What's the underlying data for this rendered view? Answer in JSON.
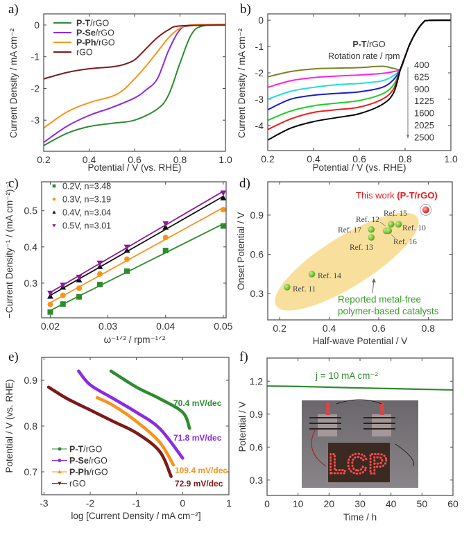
{
  "chart_data": [
    {
      "label": "a)",
      "type": "line",
      "xlabel": "Potential / V (vs. RHE)",
      "ylabel": "Current Density / mA cm⁻²",
      "xlim": [
        0.2,
        1.0
      ],
      "ylim": [
        -3.98,
        0.35
      ],
      "xticks": [
        "0.2",
        "0.4",
        "0.6",
        "0.8",
        "1.0"
      ],
      "yticks": [
        "0",
        "-1",
        "-2",
        "-3"
      ],
      "legend": "top-left",
      "series": [
        {
          "name": "P-T/rGO",
          "color": "#2e8b2e",
          "x": [
            0.2,
            0.3,
            0.4,
            0.5,
            0.6,
            0.7,
            0.75,
            0.8,
            0.85,
            0.9,
            1.0
          ],
          "y": [
            -3.8,
            -3.42,
            -3.2,
            -3.1,
            -3.0,
            -2.65,
            -2.2,
            -1.2,
            -0.3,
            -0.03,
            0
          ]
        },
        {
          "name": "P-Se/rGO",
          "color": "#8a2be2",
          "x": [
            0.2,
            0.3,
            0.4,
            0.5,
            0.6,
            0.65,
            0.7,
            0.75,
            0.8,
            0.85,
            1.0
          ],
          "y": [
            -3.7,
            -3.2,
            -2.85,
            -2.6,
            -2.3,
            -2.05,
            -1.7,
            -0.8,
            -0.15,
            -0.02,
            0
          ]
        },
        {
          "name": "P-Ph/rGO",
          "color": "#f7941d",
          "x": [
            0.2,
            0.3,
            0.4,
            0.5,
            0.55,
            0.6,
            0.65,
            0.7,
            0.75,
            0.8,
            0.85,
            1.0
          ],
          "y": [
            -3.25,
            -2.75,
            -2.45,
            -2.25,
            -2.05,
            -1.7,
            -1.3,
            -0.85,
            -0.4,
            -0.1,
            0,
            0.02
          ]
        },
        {
          "name": "rGO",
          "color": "#7b1a1a",
          "x": [
            0.2,
            0.3,
            0.4,
            0.5,
            0.55,
            0.6,
            0.65,
            0.7,
            0.75,
            0.8,
            1.0
          ],
          "y": [
            -1.7,
            -1.5,
            -1.38,
            -1.32,
            -1.25,
            -1.1,
            -0.75,
            -0.4,
            -0.15,
            -0.03,
            0
          ]
        }
      ]
    },
    {
      "label": "b)",
      "type": "line",
      "xlabel": "Potential / V (vs. RHE)",
      "ylabel": "Current Density / mA cm⁻²",
      "xlim": [
        0.2,
        1.0
      ],
      "ylim": [
        -4.95,
        0.24
      ],
      "xticks": [
        "0.2",
        "0.4",
        "0.6",
        "0.8",
        "1.0"
      ],
      "yticks": [
        "0",
        "-1",
        "-2",
        "-3",
        "-4"
      ],
      "annotation_title": "P-T/rGO",
      "annotation_subtitle": "Rotation rate / rpm",
      "x": [
        0.2,
        0.3,
        0.4,
        0.5,
        0.6,
        0.7,
        0.75,
        0.78,
        0.8,
        0.82,
        0.85,
        0.88,
        0.9,
        1.0
      ],
      "series": [
        {
          "name": "400",
          "color": "#808020",
          "y": [
            -2.15,
            -1.95,
            -1.85,
            -1.82,
            -1.8,
            -1.75,
            -1.83,
            -1.85,
            -1.38,
            -0.92,
            -0.42,
            -0.08,
            -0.01,
            0
          ]
        },
        {
          "name": "625",
          "color": "#ff22dd",
          "y": [
            -2.55,
            -2.3,
            -2.18,
            -2.12,
            -2.08,
            -2.02,
            -1.95,
            -1.85,
            -1.38,
            -0.92,
            -0.42,
            -0.08,
            -0.01,
            0
          ]
        },
        {
          "name": "900",
          "color": "#22dddd",
          "y": [
            -3.0,
            -2.7,
            -2.55,
            -2.45,
            -2.4,
            -2.3,
            -2.1,
            -1.85,
            -1.38,
            -0.92,
            -0.42,
            -0.08,
            -0.01,
            0
          ]
        },
        {
          "name": "1225",
          "color": "#1a1ad0",
          "y": [
            -3.4,
            -3.0,
            -2.85,
            -2.78,
            -2.72,
            -2.55,
            -2.25,
            -1.85,
            -1.38,
            -0.92,
            -0.42,
            -0.08,
            -0.01,
            0
          ]
        },
        {
          "name": "1600",
          "color": "#22cc22",
          "y": [
            -3.8,
            -3.45,
            -3.25,
            -3.15,
            -3.05,
            -2.8,
            -2.45,
            -1.85,
            -1.38,
            -0.92,
            -0.42,
            -0.08,
            -0.01,
            0
          ]
        },
        {
          "name": "2025",
          "color": "#ee1c1c",
          "y": [
            -4.15,
            -3.75,
            -3.5,
            -3.4,
            -3.3,
            -3.0,
            -2.6,
            -1.85,
            -1.38,
            -0.92,
            -0.42,
            -0.08,
            -0.01,
            0
          ]
        },
        {
          "name": "2500",
          "color": "#000000",
          "y": [
            -4.55,
            -4.1,
            -3.85,
            -3.7,
            -3.55,
            -3.2,
            -2.75,
            -1.85,
            -1.38,
            -0.92,
            -0.42,
            -0.08,
            -0.01,
            0
          ]
        }
      ]
    },
    {
      "label": "c)",
      "type": "scatter",
      "xlabel": "ω⁻¹ᐟ² / rpm⁻¹ᐟ²",
      "ylabel": "−Current Density⁻¹ / (mA cm⁻²)⁻¹",
      "xlim": [
        0.0185,
        0.0505
      ],
      "ylim": [
        0.204,
        0.58
      ],
      "xticks": [
        "0.02",
        "0.03",
        "0.04",
        "0.05"
      ],
      "yticks": [
        "0.3",
        "0.4",
        "0.5"
      ],
      "legend": "top-left",
      "x": [
        0.02,
        0.0222,
        0.025,
        0.0286,
        0.0333,
        0.04,
        0.05
      ],
      "series": [
        {
          "name": "0.2V, n=3.48",
          "color": "#2e8b2e",
          "marker": "square",
          "y": [
            0.22,
            0.242,
            0.262,
            0.296,
            0.333,
            0.39,
            0.458
          ]
        },
        {
          "name": "0.3V, n=3.19",
          "color": "#f7941d",
          "marker": "circle",
          "y": [
            0.241,
            0.266,
            0.286,
            0.325,
            0.366,
            0.426,
            0.503
          ]
        },
        {
          "name": "0.4V, n=3.04",
          "color": "#111111",
          "marker": "triangle",
          "y": [
            0.263,
            0.288,
            0.308,
            0.345,
            0.39,
            0.454,
            0.535
          ]
        },
        {
          "name": "0.5V, n=3.01",
          "color": "#8b1a9b",
          "marker": "triangle-down",
          "y": [
            0.273,
            0.295,
            0.317,
            0.356,
            0.4,
            0.465,
            0.55
          ]
        }
      ]
    },
    {
      "label": "d)",
      "type": "scatter",
      "xlabel": "Half-wave Potential / V",
      "ylabel": "Onset Potential / V",
      "xlim": [
        0.152,
        0.897
      ],
      "ylim": [
        0.1,
        1.154
      ],
      "xticks": [
        "0.2",
        "0.4",
        "0.6",
        "0.8"
      ],
      "yticks": [
        "0.3",
        "0.6",
        "0.9"
      ],
      "highlight": {
        "name": "This work",
        "name_bold": "(P-T/rGO)",
        "x": 0.79,
        "y": 0.94,
        "color": "#e31b1b"
      },
      "region_label": [
        "Reported metal-free",
        "polymer-based catalysts"
      ],
      "region_color": "#f7d98b",
      "points_color": "#5aa61e",
      "points": [
        {
          "name": "Ref. 11",
          "x": 0.23,
          "y": 0.35
        },
        {
          "name": "Ref. 14",
          "x": 0.33,
          "y": 0.45
        },
        {
          "name": "Ref. 17",
          "x": 0.57,
          "y": 0.79
        },
        {
          "name": "Ref. 13",
          "x": 0.57,
          "y": 0.73
        },
        {
          "name": "Ref. 12",
          "x": 0.63,
          "y": 0.78
        },
        {
          "name": "Ref. 16",
          "x": 0.64,
          "y": 0.78
        },
        {
          "name": "Ref. 15",
          "x": 0.65,
          "y": 0.83
        },
        {
          "name": "Ref. 10",
          "x": 0.68,
          "y": 0.83
        }
      ]
    },
    {
      "label": "e)",
      "type": "line",
      "xlabel": "log [Current Density / mA cm⁻²]",
      "ylabel": "Potential / V (vs. RHE)",
      "xlim": [
        -3.05,
        1.0
      ],
      "ylim": [
        0.65,
        0.95
      ],
      "xticks": [
        "-3",
        "-2",
        "-1",
        "0",
        "1"
      ],
      "yticks": [
        "0.7",
        "0.8",
        "0.9"
      ],
      "legend": "bottom-left",
      "series": [
        {
          "name": "P-T/rGO",
          "color": "#2e8b2e",
          "marker": "circle",
          "tafel": "70.4 mV/dec",
          "x": [
            -1.55,
            -1.0,
            -0.5,
            0.0,
            0.15
          ],
          "y": [
            0.92,
            0.885,
            0.86,
            0.83,
            0.795
          ]
        },
        {
          "name": "P-Se/rGO",
          "color": "#8a2be2",
          "marker": "circle",
          "tafel": "71.8 mV/dec",
          "x": [
            -2.25,
            -2.0,
            -1.5,
            -1.0,
            -0.5,
            0.0
          ],
          "y": [
            0.92,
            0.89,
            0.86,
            0.83,
            0.795,
            0.73
          ]
        },
        {
          "name": "P-Ph/rGO",
          "color": "#f7941d",
          "marker": "triangle",
          "tafel": "109.4 mV/dec",
          "x": [
            -1.85,
            -1.5,
            -1.0,
            -0.5,
            -0.2
          ],
          "y": [
            0.862,
            0.845,
            0.81,
            0.765,
            0.715
          ]
        },
        {
          "name": "rGO",
          "color": "#7b1a1a",
          "marker": "triangle-down",
          "tafel": "72.9 mV/dec",
          "x": [
            -2.9,
            -2.5,
            -2.0,
            -1.5,
            -1.0,
            -0.5,
            -0.25
          ],
          "y": [
            0.885,
            0.86,
            0.835,
            0.81,
            0.785,
            0.745,
            0.69
          ]
        }
      ]
    },
    {
      "label": "f)",
      "type": "line",
      "xlabel": "Time / h",
      "ylabel": "Potential / V",
      "xlim": [
        0,
        60
      ],
      "ylim": [
        0.16,
        1.41
      ],
      "xticks": [
        "0",
        "10",
        "20",
        "30",
        "40",
        "50",
        "60"
      ],
      "yticks": [
        "0.3",
        "0.6",
        "0.9",
        "1.2"
      ],
      "annotation": "j = 10 mA cm⁻²",
      "series": [
        {
          "name": "j = 10 mA cm⁻²",
          "color": "#2e8b2e",
          "x": [
            0,
            10,
            20,
            30,
            40,
            50,
            60
          ],
          "y": [
            1.155,
            1.152,
            1.145,
            1.138,
            1.132,
            1.126,
            1.12
          ]
        }
      ],
      "inset_photo_text": "LCP"
    }
  ]
}
